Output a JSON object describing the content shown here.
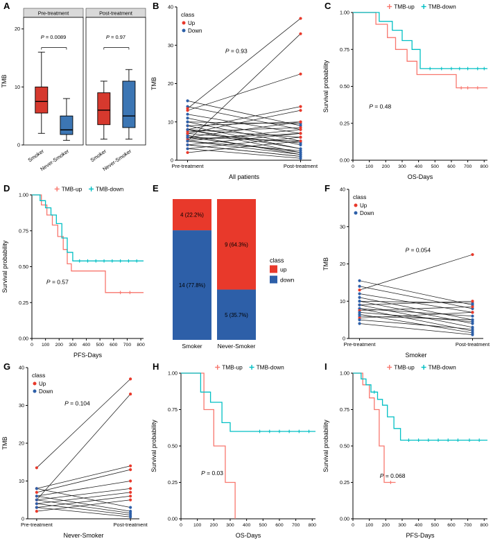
{
  "figure": {
    "colors": {
      "up": "#e8392b",
      "down": "#2d5fa8",
      "box_red": "#d6392e",
      "box_blue": "#3c76b4",
      "km_up": "#F8766D",
      "km_down": "#00BFC4",
      "strip_bg": "#d9d9d9",
      "pair_line": "#1a1a1a"
    }
  },
  "panels": {
    "a": "A",
    "b": "B",
    "c": "C",
    "d": "D",
    "e": "E",
    "f": "F",
    "g": "G",
    "h": "H",
    "i": "I"
  },
  "chart_data": [
    {
      "id": "A",
      "type": "box",
      "ylabel": "TMB",
      "ylim": [
        0,
        22
      ],
      "yticks": [
        0,
        10,
        20
      ],
      "facets": [
        {
          "title": "Pre-treatment",
          "p_label": "P = 0.0089",
          "groups": [
            {
              "label": "Smoker",
              "color_key": "box_red",
              "low": 2,
              "q1": 5.5,
              "median": 7.5,
              "q3": 10,
              "high": 16
            },
            {
              "label": "Never-Smoker",
              "color_key": "box_blue",
              "low": 0.8,
              "q1": 1.8,
              "median": 2.6,
              "q3": 5,
              "high": 8
            }
          ]
        },
        {
          "title": "Post-treatment",
          "p_label": "P = 0.97",
          "groups": [
            {
              "label": "Smoker",
              "color_key": "box_red",
              "low": 1,
              "q1": 3.5,
              "median": 6,
              "q3": 9,
              "high": 11
            },
            {
              "label": "Never-Smoker",
              "color_key": "box_blue",
              "low": 1,
              "q1": 3,
              "median": 5,
              "q3": 11,
              "high": 13
            }
          ]
        }
      ]
    },
    {
      "id": "B",
      "type": "paired",
      "ylabel": "TMB",
      "xlabel": "All patients",
      "ylim": [
        0,
        40
      ],
      "yticks": [
        0,
        10,
        20,
        30,
        40
      ],
      "x_categories": [
        "Pre-treatment",
        "Post-treatment"
      ],
      "p_label": "P = 0.93",
      "p_pos": [
        0.36,
        0.3
      ],
      "legend": {
        "title": "class",
        "items": [
          {
            "label": "Up",
            "color_key": "up"
          },
          {
            "label": "Down",
            "color_key": "down"
          }
        ]
      },
      "pairs": [
        [
          15.5,
          9
        ],
        [
          14,
          8
        ],
        [
          13,
          22.5
        ],
        [
          12,
          7
        ],
        [
          11,
          5
        ],
        [
          10,
          9.5
        ],
        [
          10,
          4
        ],
        [
          9,
          10
        ],
        [
          9,
          3
        ],
        [
          8,
          6
        ],
        [
          8,
          2
        ],
        [
          7.5,
          8.5
        ],
        [
          7,
          4.5
        ],
        [
          6.5,
          1.5
        ],
        [
          6,
          5
        ],
        [
          5.5,
          7
        ],
        [
          5,
          2.5
        ],
        [
          4,
          1
        ],
        [
          13.5,
          37
        ],
        [
          5,
          33
        ],
        [
          8,
          14
        ],
        [
          7,
          13
        ],
        [
          6,
          10
        ],
        [
          5,
          8
        ],
        [
          4,
          7
        ],
        [
          3,
          6
        ],
        [
          2,
          5
        ],
        [
          8,
          3
        ],
        [
          6,
          2
        ],
        [
          5,
          1.5
        ],
        [
          4,
          1
        ],
        [
          3,
          0.5
        ]
      ]
    },
    {
      "id": "C",
      "type": "km",
      "ylabel": "Survival probability",
      "xlabel": "OS-Days",
      "xlim": [
        0,
        820
      ],
      "xticks": [
        0,
        100,
        200,
        300,
        400,
        500,
        600,
        700,
        800
      ],
      "yticks": [
        "0.00",
        "0.25",
        "0.50",
        "0.75",
        "1.00"
      ],
      "p_label": "P = 0.48",
      "p_pos": [
        0.12,
        0.65
      ],
      "series": [
        {
          "name": "TMB-up",
          "color_key": "km_up",
          "steps": [
            [
              0,
              1
            ],
            [
              140,
              0.92
            ],
            [
              210,
              0.83
            ],
            [
              260,
              0.75
            ],
            [
              330,
              0.67
            ],
            [
              390,
              0.58
            ],
            [
              630,
              0.49
            ]
          ],
          "censors": [
            [
              660,
              0.49
            ],
            [
              700,
              0.49
            ],
            [
              760,
              0.49
            ]
          ]
        },
        {
          "name": "TMB-down",
          "color_key": "km_down",
          "steps": [
            [
              0,
              1
            ],
            [
              160,
              0.94
            ],
            [
              240,
              0.88
            ],
            [
              300,
              0.81
            ],
            [
              360,
              0.75
            ],
            [
              410,
              0.62
            ]
          ],
          "censors": [
            [
              470,
              0.62
            ],
            [
              540,
              0.62
            ],
            [
              600,
              0.62
            ],
            [
              650,
              0.62
            ],
            [
              700,
              0.62
            ],
            [
              760,
              0.62
            ],
            [
              800,
              0.62
            ]
          ]
        }
      ]
    },
    {
      "id": "D",
      "type": "km",
      "ylabel": "Survival probability",
      "xlabel": "PFS-Days",
      "xlim": [
        0,
        820
      ],
      "xticks": [
        0,
        100,
        200,
        300,
        400,
        500,
        600,
        700,
        800
      ],
      "yticks": [
        "0.00",
        "0.25",
        "0.50",
        "0.75",
        "1.00"
      ],
      "p_label": "P = 0.57",
      "p_pos": [
        0.13,
        0.62
      ],
      "series": [
        {
          "name": "TMB-up",
          "color_key": "km_up",
          "steps": [
            [
              0,
              1
            ],
            [
              70,
              0.93
            ],
            [
              110,
              0.86
            ],
            [
              150,
              0.79
            ],
            [
              190,
              0.71
            ],
            [
              230,
              0.62
            ],
            [
              260,
              0.52
            ],
            [
              290,
              0.47
            ],
            [
              540,
              0.32
            ]
          ],
          "censors": [
            [
              650,
              0.32
            ],
            [
              720,
              0.32
            ]
          ]
        },
        {
          "name": "TMB-down",
          "color_key": "km_down",
          "steps": [
            [
              0,
              1
            ],
            [
              60,
              0.96
            ],
            [
              100,
              0.91
            ],
            [
              140,
              0.86
            ],
            [
              180,
              0.8
            ],
            [
              220,
              0.7
            ],
            [
              260,
              0.6
            ],
            [
              300,
              0.54
            ]
          ],
          "censors": [
            [
              350,
              0.54
            ],
            [
              410,
              0.54
            ],
            [
              470,
              0.54
            ],
            [
              530,
              0.54
            ],
            [
              590,
              0.54
            ],
            [
              650,
              0.54
            ],
            [
              710,
              0.54
            ],
            [
              770,
              0.54
            ]
          ]
        }
      ]
    },
    {
      "id": "E",
      "type": "stacked",
      "categories": [
        "Smoker",
        "Never-Smoker"
      ],
      "legend": {
        "title": "class",
        "items": [
          {
            "label": "up",
            "color_key": "up"
          },
          {
            "label": "down",
            "color_key": "down"
          }
        ]
      },
      "bars": [
        {
          "category": "Smoker",
          "segments": [
            {
              "key": "up",
              "label": "4 (22.2%)",
              "frac": 0.222
            },
            {
              "key": "down",
              "label": "14 (77.8%)",
              "frac": 0.778
            }
          ]
        },
        {
          "category": "Never-Smoker",
          "segments": [
            {
              "key": "up",
              "label": "9 (64.3%)",
              "frac": 0.643
            },
            {
              "key": "down",
              "label": "5 (35.7%)",
              "frac": 0.357
            }
          ]
        }
      ]
    },
    {
      "id": "F",
      "type": "paired",
      "ylabel": "TMB",
      "xlabel": "Smoker",
      "ylim": [
        0,
        40
      ],
      "yticks": [
        0,
        10,
        20,
        30,
        40
      ],
      "x_categories": [
        "Pre-treatment",
        "Post-treatment"
      ],
      "p_label": "P = 0.054",
      "p_pos": [
        0.42,
        0.42
      ],
      "legend": {
        "title": "class",
        "items": [
          {
            "label": "Up",
            "color_key": "up"
          },
          {
            "label": "Down",
            "color_key": "down"
          }
        ]
      },
      "pairs": [
        [
          15.5,
          9
        ],
        [
          14,
          8
        ],
        [
          13,
          22.5
        ],
        [
          12,
          7
        ],
        [
          11,
          5
        ],
        [
          10,
          9.5
        ],
        [
          10,
          4
        ],
        [
          9,
          10
        ],
        [
          9,
          3
        ],
        [
          8,
          6
        ],
        [
          8,
          2
        ],
        [
          7.5,
          8.5
        ],
        [
          7,
          4.5
        ],
        [
          6.5,
          1.5
        ],
        [
          6,
          5
        ],
        [
          5.5,
          7
        ],
        [
          5,
          2.5
        ],
        [
          4,
          1
        ]
      ]
    },
    {
      "id": "G",
      "type": "paired",
      "ylabel": "TMB",
      "xlabel": "Never-Smoker",
      "ylim": [
        0,
        40
      ],
      "yticks": [
        0,
        10,
        20,
        30,
        40
      ],
      "x_categories": [
        "Pre-treatment",
        "Post-treatment"
      ],
      "p_label": "P = 0.104",
      "p_pos": [
        0.33,
        0.25
      ],
      "legend": {
        "title": "class",
        "items": [
          {
            "label": "Up",
            "color_key": "up"
          },
          {
            "label": "Down",
            "color_key": "down"
          }
        ]
      },
      "pairs": [
        [
          13.5,
          37
        ],
        [
          5,
          33
        ],
        [
          8,
          14
        ],
        [
          7,
          13
        ],
        [
          6,
          10
        ],
        [
          5,
          8
        ],
        [
          4,
          7
        ],
        [
          3,
          6
        ],
        [
          2,
          5
        ],
        [
          8,
          3
        ],
        [
          6,
          2
        ],
        [
          5,
          1.5
        ],
        [
          4,
          1
        ],
        [
          3,
          0.5
        ]
      ]
    },
    {
      "id": "H",
      "type": "km",
      "ylabel": "Survival probability",
      "xlabel": "OS-Days",
      "xlim": [
        0,
        820
      ],
      "xticks": [
        0,
        100,
        200,
        300,
        400,
        500,
        600,
        700,
        800
      ],
      "yticks": [
        "0.00",
        "0.25",
        "0.50",
        "0.75",
        "1.00"
      ],
      "p_label": "P = 0.03",
      "p_pos": [
        0.15,
        0.7
      ],
      "series": [
        {
          "name": "TMB-up",
          "color_key": "km_up",
          "steps": [
            [
              0,
              1
            ],
            [
              140,
              0.75
            ],
            [
              200,
              0.5
            ],
            [
              270,
              0.25
            ],
            [
              330,
              0
            ]
          ],
          "censors": []
        },
        {
          "name": "TMB-down",
          "color_key": "km_down",
          "steps": [
            [
              0,
              1
            ],
            [
              120,
              0.87
            ],
            [
              180,
              0.8
            ],
            [
              250,
              0.66
            ],
            [
              300,
              0.6
            ]
          ],
          "censors": [
            [
              480,
              0.6
            ],
            [
              540,
              0.6
            ],
            [
              600,
              0.6
            ],
            [
              660,
              0.6
            ],
            [
              720,
              0.6
            ],
            [
              780,
              0.6
            ]
          ]
        }
      ]
    },
    {
      "id": "I",
      "type": "km",
      "ylabel": "Survival probability",
      "xlabel": "PFS-Days",
      "xlim": [
        0,
        820
      ],
      "xticks": [
        0,
        100,
        200,
        300,
        400,
        500,
        600,
        700,
        800
      ],
      "yticks": [
        "0.00",
        "0.25",
        "0.50",
        "0.75",
        "1.00"
      ],
      "p_label": "P = 0.068",
      "p_pos": [
        0.2,
        0.72
      ],
      "series": [
        {
          "name": "TMB-up",
          "color_key": "km_up",
          "steps": [
            [
              0,
              1
            ],
            [
              60,
              0.92
            ],
            [
              100,
              0.83
            ],
            [
              130,
              0.75
            ],
            [
              160,
              0.5
            ],
            [
              190,
              0.25
            ]
          ],
          "censors": [
            [
              230,
              0.25
            ]
          ],
          "end_x": 260
        },
        {
          "name": "TMB-down",
          "color_key": "km_down",
          "steps": [
            [
              0,
              1
            ],
            [
              50,
              0.96
            ],
            [
              80,
              0.92
            ],
            [
              110,
              0.87
            ],
            [
              150,
              0.82
            ],
            [
              180,
              0.78
            ],
            [
              210,
              0.7
            ],
            [
              250,
              0.62
            ],
            [
              290,
              0.54
            ]
          ],
          "censors": [
            [
              130,
              0.87
            ],
            [
              340,
              0.54
            ],
            [
              400,
              0.54
            ],
            [
              460,
              0.54
            ],
            [
              520,
              0.54
            ],
            [
              580,
              0.54
            ],
            [
              640,
              0.54
            ],
            [
              710,
              0.54
            ],
            [
              770,
              0.54
            ]
          ]
        }
      ]
    }
  ]
}
